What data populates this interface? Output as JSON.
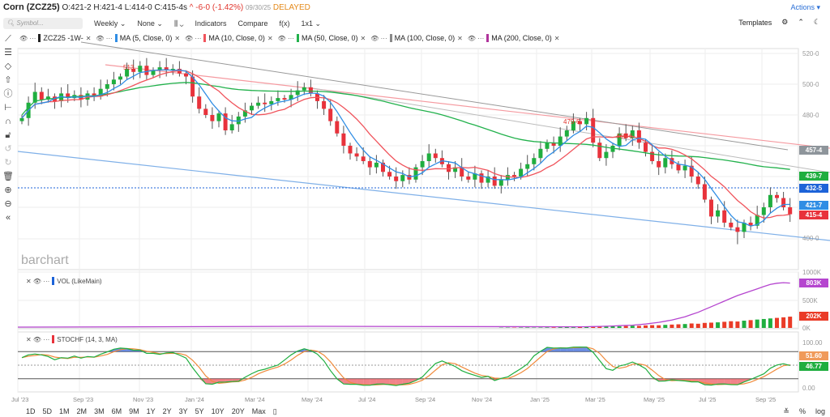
{
  "header": {
    "symbol_name": "Corn (ZCZ25)",
    "open": "O:421-2",
    "high": "H:421-4",
    "low": "L:414-0",
    "close": "C:415-4s",
    "change": "^ -6-0 (-1.42%)",
    "date": "09/30/25",
    "status": "DELAYED",
    "actions": "Actions ▾"
  },
  "toolbar": {
    "search_placeholder": "Symbol...",
    "interval": "Weekly ⌄",
    "none": "None ⌄",
    "chart_type": "⌄",
    "indicators": "Indicators",
    "compare": "Compare",
    "fx": "f(x)",
    "layout": "1x1 ⌄",
    "templates": "Templates"
  },
  "legend": [
    {
      "label": "ZCZ25 -1W-",
      "color": "#222222"
    },
    {
      "label": "MA (5, Close, 0)",
      "color": "#2f8de4"
    },
    {
      "label": "MA (10, Close, 0)",
      "color": "#f0545c"
    },
    {
      "label": "MA (50, Close, 0)",
      "color": "#22b14c"
    },
    {
      "label": "MA (100, Close, 0)",
      "color": "#888888"
    },
    {
      "label": "MA (200, Close, 0)",
      "color": "#b0339b"
    }
  ],
  "watermark": "barchart",
  "price_axis": [
    "520-0",
    "500-0",
    "480-0",
    "400-0"
  ],
  "price_badges": [
    {
      "text": "457-4",
      "color": "#8e959b"
    },
    {
      "text": "439-7",
      "color": "#1fae3f"
    },
    {
      "text": "432-5",
      "color": "#1d63d8"
    },
    {
      "text": "421-7",
      "color": "#2f8de4"
    },
    {
      "text": "415-4",
      "color": "#e8323b"
    }
  ],
  "annotations": [
    "513",
    "479-6",
    "469-6"
  ],
  "volume": {
    "label": "VOL (LikeMain)",
    "axis": [
      "1000K",
      "500K",
      "0K"
    ],
    "badges": [
      {
        "text": "803K",
        "color": "#b545cf"
      },
      {
        "text": "202K",
        "color": "#ea3b27"
      }
    ]
  },
  "stoch": {
    "label": "STOCHF (14, 3, MA)",
    "axis": [
      "100.00",
      "0.00"
    ],
    "badges": [
      {
        "text": "51.60",
        "color": "#f09a5a"
      },
      {
        "text": "46.77",
        "color": "#1fae3f"
      }
    ]
  },
  "date_axis": [
    "Jul '23",
    "Sep '23",
    "Nov '23",
    "Jan '24",
    "Mar '24",
    "May '24",
    "Jul '24",
    "Sep '24",
    "Nov '24",
    "Jan '25",
    "Mar '25",
    "May '25",
    "Jul '25",
    "Sep '25"
  ],
  "ranges": [
    "1D",
    "5D",
    "1M",
    "2M",
    "3M",
    "6M",
    "9M",
    "1Y",
    "2Y",
    "3Y",
    "5Y",
    "10Y",
    "20Y",
    "Max"
  ],
  "bottom_right": [
    "%",
    "log"
  ],
  "chart_data": {
    "type": "candlestick",
    "title": "Corn (ZCZ25) Weekly",
    "ylim": [
      390,
      525
    ],
    "close": [
      478,
      488,
      495,
      490,
      492,
      489,
      494,
      491,
      493,
      490,
      494,
      492,
      497,
      500,
      503,
      505,
      510,
      508,
      512,
      506,
      509,
      511,
      509,
      510,
      507,
      505,
      492,
      484,
      480,
      476,
      481,
      470,
      474,
      479,
      483,
      486,
      488,
      487,
      489,
      491,
      490,
      493,
      496,
      498,
      494,
      489,
      484,
      476,
      468,
      460,
      455,
      453,
      450,
      446,
      449,
      443,
      440,
      437,
      441,
      438,
      446,
      450,
      455,
      452,
      448,
      443,
      446,
      440,
      438,
      442,
      436,
      440,
      434,
      438,
      441,
      440,
      445,
      448,
      452,
      458,
      462,
      460,
      466,
      470,
      476,
      474,
      478,
      462,
      452,
      456,
      460,
      468,
      465,
      470,
      462,
      456,
      450,
      446,
      452,
      448,
      444,
      447,
      440,
      435,
      425,
      414,
      418,
      410,
      407,
      404,
      410,
      408,
      415,
      420,
      428,
      426,
      420,
      415.5
    ],
    "volume_k": [
      5,
      6,
      5,
      7,
      8,
      6,
      7,
      9,
      10,
      12,
      14,
      12,
      15,
      18,
      20,
      22,
      25,
      30,
      28,
      35,
      40,
      38,
      45,
      50,
      48,
      55,
      60,
      65,
      70,
      80,
      75,
      90,
      95,
      100,
      110,
      120,
      115,
      130,
      140,
      150,
      160,
      170,
      180,
      190,
      202
    ],
    "open_interest_k": [
      20,
      22,
      25,
      28,
      30,
      35,
      40,
      45,
      50,
      60,
      70,
      85,
      100,
      120,
      140,
      170,
      200,
      240,
      280,
      330,
      380,
      430,
      480,
      530,
      580,
      620,
      660,
      700,
      740,
      780,
      800,
      810,
      803
    ]
  }
}
